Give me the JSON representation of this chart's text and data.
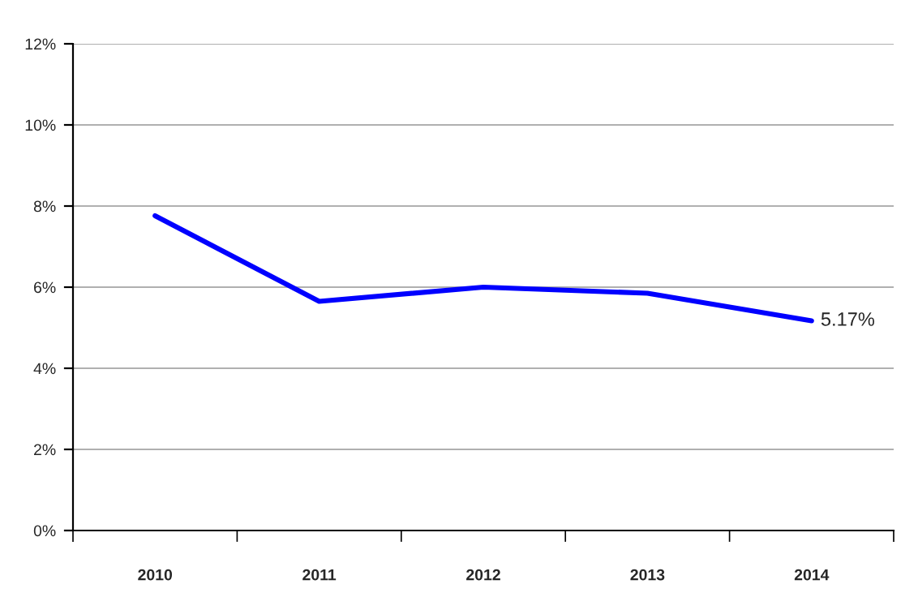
{
  "chart_data": {
    "type": "line",
    "categories": [
      "2010",
      "2011",
      "2012",
      "2013",
      "2014"
    ],
    "series": [
      {
        "color": "#0000ff",
        "values": [
          7.76,
          5.65,
          6.0,
          5.85,
          5.17
        ],
        "value_labels": [
          null,
          null,
          null,
          null,
          "5.17%"
        ]
      }
    ],
    "ylim": [
      0,
      12
    ],
    "yticks": [
      {
        "value": 0,
        "label": "0%"
      },
      {
        "value": 2,
        "label": "2%"
      },
      {
        "value": 4,
        "label": "4%"
      },
      {
        "value": 6,
        "label": "6%"
      },
      {
        "value": 8,
        "label": "8%"
      },
      {
        "value": 10,
        "label": "10%"
      },
      {
        "value": 12,
        "label": "12%"
      }
    ],
    "grid": "y",
    "legend": false,
    "marker": "none",
    "line_style": "solid"
  }
}
